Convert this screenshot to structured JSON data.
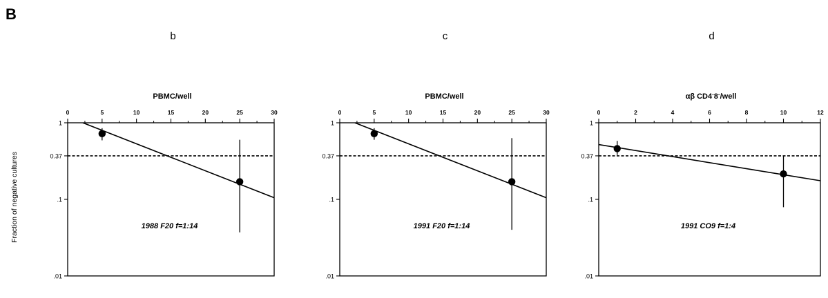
{
  "panel_label": "B",
  "y_axis_label": "Fraction of negative cultures",
  "chart_data": [
    {
      "type": "scatter",
      "subpanel": "b",
      "xlabel": "PBMC/well",
      "xlabel_sup": "",
      "xlabel_suffix": "",
      "ylabel": "Fraction of negative cultures",
      "x_scale": "linear",
      "y_scale": "log",
      "xlim": [
        0,
        30
      ],
      "ylim": [
        0.01,
        1
      ],
      "x_ticks": [
        0,
        5,
        10,
        15,
        20,
        25,
        30
      ],
      "y_ticks": [
        1,
        0.37,
        0.1,
        0.01
      ],
      "y_tick_labels": [
        "1",
        "0.37",
        ".1",
        ".01"
      ],
      "reference_y": 0.37,
      "points": [
        {
          "x": 5,
          "y": 0.72,
          "y_low": 0.59,
          "y_high": 0.85
        },
        {
          "x": 25,
          "y": 0.17,
          "y_low": 0.037,
          "y_high": 0.6
        }
      ],
      "fit_line": [
        [
          2.2,
          1.0
        ],
        [
          30,
          0.105
        ]
      ],
      "annotation": "1988 F20 f=1:14"
    },
    {
      "type": "scatter",
      "subpanel": "c",
      "xlabel": "PBMC/well",
      "xlabel_sup": "",
      "xlabel_suffix": "",
      "ylabel": "Fraction of negative cultures",
      "x_scale": "linear",
      "y_scale": "log",
      "xlim": [
        0,
        30
      ],
      "ylim": [
        0.01,
        1
      ],
      "x_ticks": [
        0,
        5,
        10,
        15,
        20,
        25,
        30
      ],
      "y_ticks": [
        1,
        0.37,
        0.1,
        0.01
      ],
      "y_tick_labels": [
        "1",
        "0.37",
        ".1",
        ".01"
      ],
      "reference_y": 0.37,
      "points": [
        {
          "x": 5,
          "y": 0.72,
          "y_low": 0.6,
          "y_high": 0.85
        },
        {
          "x": 25,
          "y": 0.17,
          "y_low": 0.04,
          "y_high": 0.63
        }
      ],
      "fit_line": [
        [
          2.2,
          1.0
        ],
        [
          30,
          0.105
        ]
      ],
      "annotation": "1991 F20 f=1:14"
    },
    {
      "type": "scatter",
      "subpanel": "d",
      "xlabel": "αβ  CD4",
      "xlabel_sup": "-",
      "xlabel_suffix": "8",
      "xlabel_sup2": "-",
      "xlabel_tail": "/well",
      "ylabel": "Fraction of negative cultures",
      "x_scale": "linear",
      "y_scale": "log",
      "xlim": [
        0,
        12
      ],
      "ylim": [
        0.01,
        1
      ],
      "x_ticks": [
        0,
        2,
        4,
        6,
        8,
        10,
        12
      ],
      "y_ticks": [
        1,
        0.37,
        0.1,
        0.01
      ],
      "y_tick_labels": [
        "1",
        "0.37",
        ".1",
        ".01"
      ],
      "reference_y": 0.37,
      "points": [
        {
          "x": 1,
          "y": 0.46,
          "y_low": 0.38,
          "y_high": 0.58
        },
        {
          "x": 10,
          "y": 0.215,
          "y_low": 0.079,
          "y_high": 0.37
        }
      ],
      "fit_line": [
        [
          0,
          0.52
        ],
        [
          12,
          0.175
        ]
      ],
      "annotation": "1991 CO9 f=1:4"
    }
  ]
}
